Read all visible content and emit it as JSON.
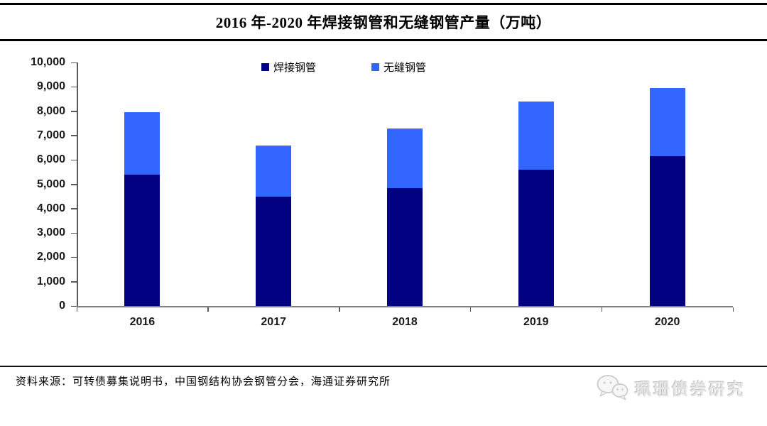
{
  "title": "2016 年-2020 年焊接钢管和无缝钢管产量（万吨）",
  "chart_data": {
    "type": "bar",
    "stacked": true,
    "title": "2016 年-2020 年焊接钢管和无缝钢管产量（万吨）",
    "categories": [
      "2016",
      "2017",
      "2018",
      "2019",
      "2020"
    ],
    "series": [
      {
        "name": "焊接钢管",
        "color": "#000080",
        "values": [
          5400,
          4500,
          4850,
          5600,
          6150
        ]
      },
      {
        "name": "无缝钢管",
        "color": "#3366FF",
        "values": [
          2550,
          2100,
          2450,
          2800,
          2800
        ]
      }
    ],
    "xlabel": "",
    "ylabel": "",
    "ylim": [
      0,
      10000
    ],
    "ytick_values": [
      0,
      1000,
      2000,
      3000,
      4000,
      5000,
      6000,
      7000,
      8000,
      9000,
      10000
    ],
    "ytick_labels": [
      "0",
      "1,000",
      "2,000",
      "3,000",
      "4,000",
      "5,000",
      "6,000",
      "7,000",
      "8,000",
      "9,000",
      "10,000"
    ],
    "grid": false,
    "legend_position": "top-center"
  },
  "footer": {
    "source": "资料来源：可转债募集说明书，中国钢结构协会钢管分会，海通证券研究所"
  },
  "watermark": {
    "icon": "wechat-icon",
    "text": "珮珊债券研究"
  }
}
